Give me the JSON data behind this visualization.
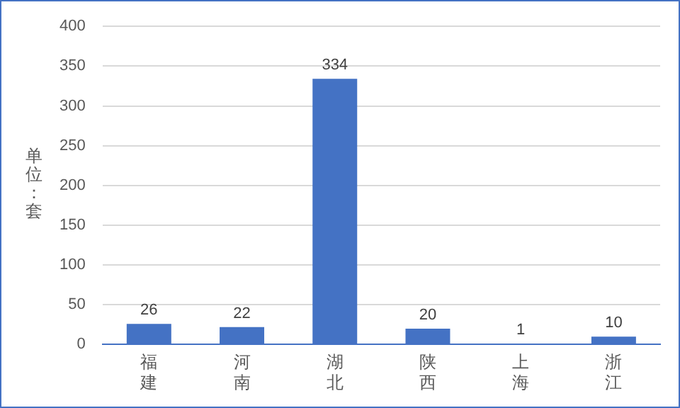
{
  "chart_data": {
    "type": "bar",
    "ylabel": "单位：套",
    "categories": [
      "福建",
      "河南",
      "湖北",
      "陕西",
      "上海",
      "浙江"
    ],
    "values": [
      26,
      22,
      334,
      20,
      1,
      10
    ],
    "color": "#4472c4",
    "ylim": [
      0,
      400
    ],
    "yticks": [
      0,
      50,
      100,
      150,
      200,
      250,
      300,
      350,
      400
    ],
    "grid": "y",
    "data_labels": true,
    "legend": false
  }
}
